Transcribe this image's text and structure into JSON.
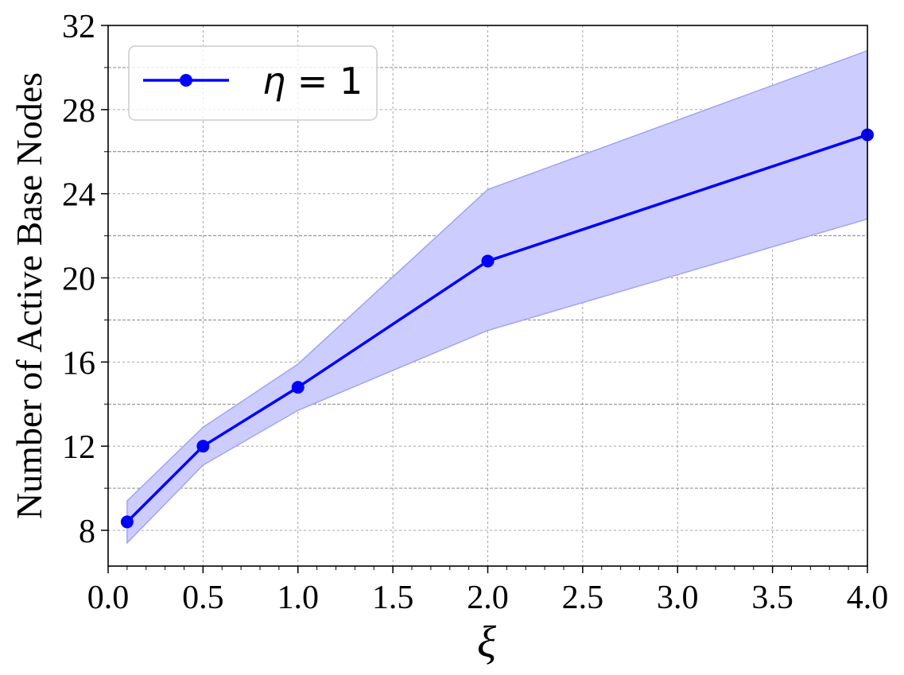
{
  "chart_data": {
    "type": "line",
    "xlabel": "ξ",
    "ylabel": "Number of Active Base Nodes",
    "xlim": [
      0.0,
      4.0
    ],
    "ylim": [
      6.3,
      32
    ],
    "x_ticks": [
      0.0,
      0.5,
      1.0,
      1.5,
      2.0,
      2.5,
      3.0,
      3.5,
      4.0
    ],
    "x_tick_labels": [
      "0.0",
      "0.5",
      "1.0",
      "1.5",
      "2.0",
      "2.5",
      "3.0",
      "3.5",
      "4.0"
    ],
    "y_ticks": [
      8,
      12,
      16,
      20,
      24,
      28,
      32
    ],
    "y_tick_labels": [
      "8",
      "12",
      "16",
      "20",
      "24",
      "28",
      "32"
    ],
    "y_minor_gridlines": [
      10,
      14,
      18,
      22,
      26,
      30
    ],
    "grid": true,
    "legend_position": "top-left",
    "series": [
      {
        "name": "η = 1",
        "legend_prefix": "η",
        "legend_suffix": " = 1",
        "color": "#0000ff",
        "marker": "circle",
        "x": [
          0.1,
          0.5,
          1.0,
          2.0,
          4.0
        ],
        "y": [
          8.4,
          12.0,
          14.8,
          20.8,
          26.8
        ],
        "band_upper": [
          9.4,
          12.9,
          15.9,
          24.2,
          30.8
        ],
        "band_lower": [
          7.4,
          11.1,
          13.7,
          17.5,
          22.8
        ],
        "band_color": "#ccccff"
      }
    ]
  }
}
